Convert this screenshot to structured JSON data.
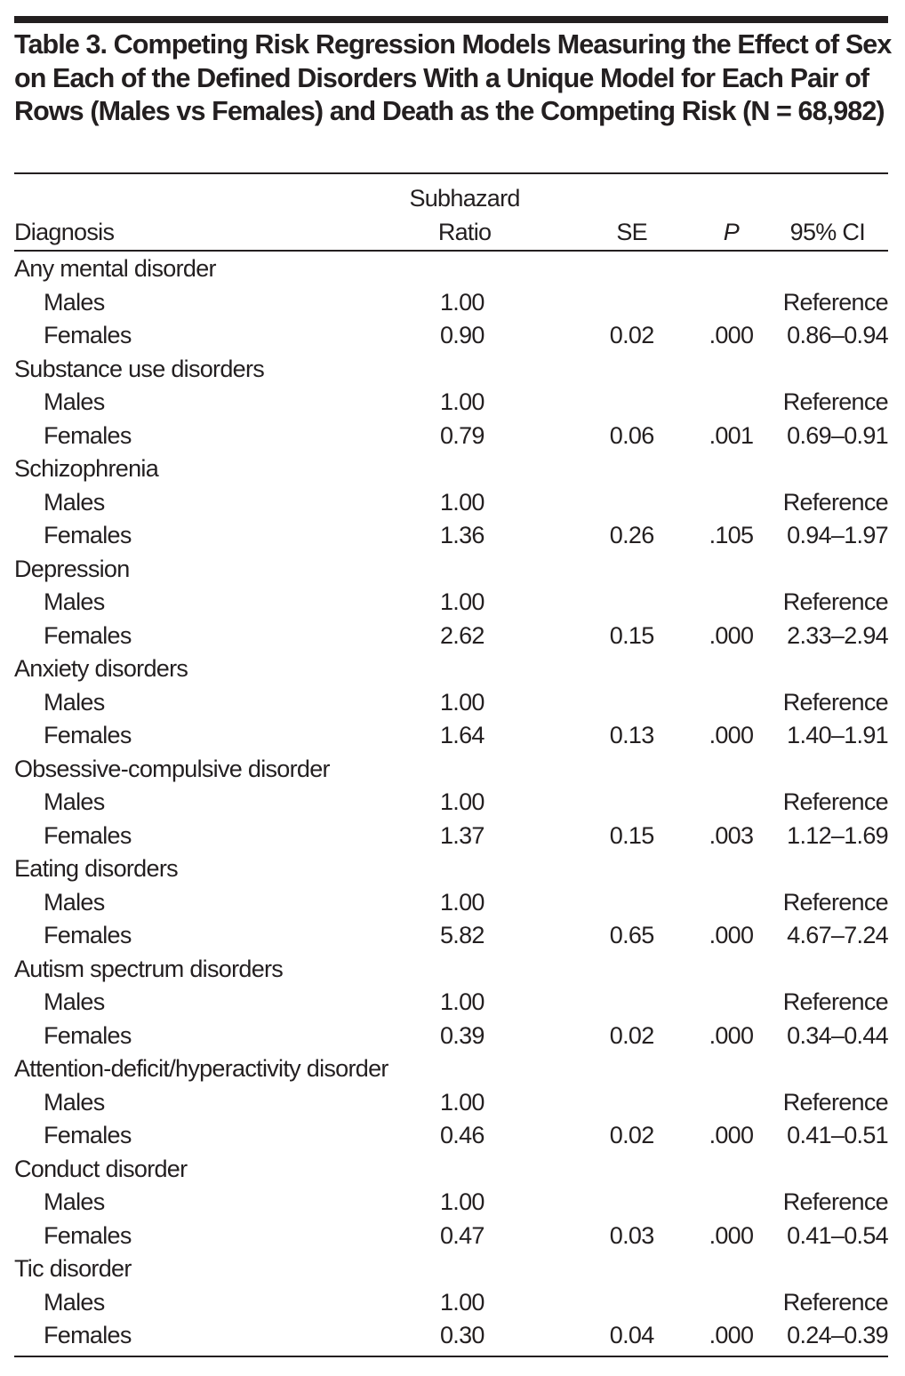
{
  "caption": "Table 3. Competing Risk Regression Models Measuring the Effect of Sex on Each of the Defined Disorders With a Unique Model for Each Pair of Rows (Males vs Females) and Death as the Competing Risk (N = 68,982)",
  "columns": {
    "diagnosis": "Diagnosis",
    "shr_line1": "Subhazard",
    "shr_line2": "Ratio",
    "se": "SE",
    "p": "P",
    "ci": "95% CI"
  },
  "groups": [
    {
      "name": "Any mental disorder",
      "rows": [
        {
          "label": "Males",
          "shr": "1.00",
          "se": "",
          "p": "",
          "ci": "Reference"
        },
        {
          "label": "Females",
          "shr": "0.90",
          "se": "0.02",
          "p": ".000",
          "ci": "0.86–0.94"
        }
      ]
    },
    {
      "name": "Substance use disorders",
      "rows": [
        {
          "label": "Males",
          "shr": "1.00",
          "se": "",
          "p": "",
          "ci": "Reference"
        },
        {
          "label": "Females",
          "shr": "0.79",
          "se": "0.06",
          "p": ".001",
          "ci": "0.69–0.91"
        }
      ]
    },
    {
      "name": "Schizophrenia",
      "rows": [
        {
          "label": "Males",
          "shr": "1.00",
          "se": "",
          "p": "",
          "ci": "Reference"
        },
        {
          "label": "Females",
          "shr": "1.36",
          "se": "0.26",
          "p": ".105",
          "ci": "0.94–1.97"
        }
      ]
    },
    {
      "name": "Depression",
      "rows": [
        {
          "label": "Males",
          "shr": "1.00",
          "se": "",
          "p": "",
          "ci": "Reference"
        },
        {
          "label": "Females",
          "shr": "2.62",
          "se": "0.15",
          "p": ".000",
          "ci": "2.33–2.94"
        }
      ]
    },
    {
      "name": "Anxiety disorders",
      "rows": [
        {
          "label": "Males",
          "shr": "1.00",
          "se": "",
          "p": "",
          "ci": "Reference"
        },
        {
          "label": "Females",
          "shr": "1.64",
          "se": "0.13",
          "p": ".000",
          "ci": "1.40–1.91"
        }
      ]
    },
    {
      "name": "Obsessive-compulsive disorder",
      "rows": [
        {
          "label": "Males",
          "shr": "1.00",
          "se": "",
          "p": "",
          "ci": "Reference"
        },
        {
          "label": "Females",
          "shr": "1.37",
          "se": "0.15",
          "p": ".003",
          "ci": "1.12–1.69"
        }
      ]
    },
    {
      "name": "Eating disorders",
      "rows": [
        {
          "label": "Males",
          "shr": "1.00",
          "se": "",
          "p": "",
          "ci": "Reference"
        },
        {
          "label": "Females",
          "shr": "5.82",
          "se": "0.65",
          "p": ".000",
          "ci": "4.67–7.24"
        }
      ]
    },
    {
      "name": "Autism spectrum disorders",
      "rows": [
        {
          "label": "Males",
          "shr": "1.00",
          "se": "",
          "p": "",
          "ci": "Reference"
        },
        {
          "label": "Females",
          "shr": "0.39",
          "se": "0.02",
          "p": ".000",
          "ci": "0.34–0.44"
        }
      ]
    },
    {
      "name": "Attention-deficit/hyperactivity disorder",
      "rows": [
        {
          "label": "Males",
          "shr": "1.00",
          "se": "",
          "p": "",
          "ci": "Reference"
        },
        {
          "label": "Females",
          "shr": "0.46",
          "se": "0.02",
          "p": ".000",
          "ci": "0.41–0.51"
        }
      ]
    },
    {
      "name": "Conduct disorder",
      "rows": [
        {
          "label": "Males",
          "shr": "1.00",
          "se": "",
          "p": "",
          "ci": "Reference"
        },
        {
          "label": "Females",
          "shr": "0.47",
          "se": "0.03",
          "p": ".000",
          "ci": "0.41–0.54"
        }
      ]
    },
    {
      "name": "Tic disorder",
      "rows": [
        {
          "label": "Males",
          "shr": "1.00",
          "se": "",
          "p": "",
          "ci": "Reference"
        },
        {
          "label": "Females",
          "shr": "0.30",
          "se": "0.04",
          "p": ".000",
          "ci": "0.24–0.39"
        }
      ]
    }
  ]
}
